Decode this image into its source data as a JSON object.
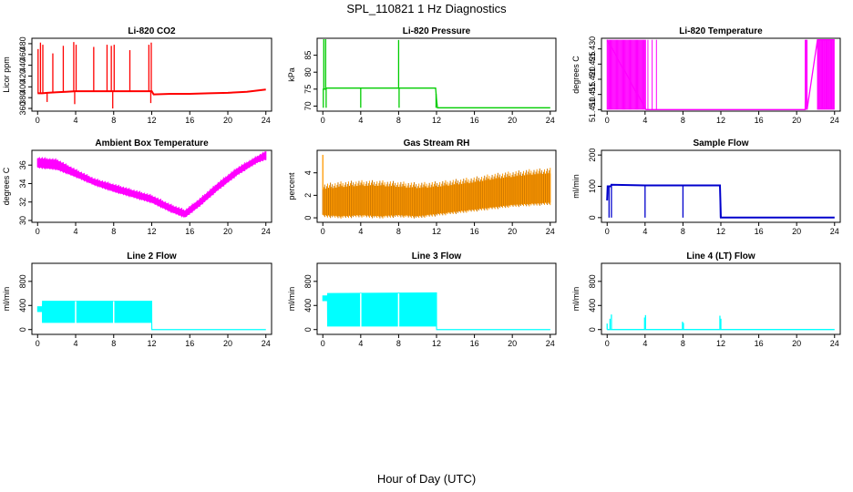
{
  "figure": {
    "title": "SPL_110821  1 Hz Diagnostics",
    "xlabel": "Hour of Day (UTC)"
  },
  "chart_data": [
    {
      "type": "line",
      "title": "Li-820 CO2",
      "ylabel": "Licor ppm",
      "color": "#ff0000",
      "xticks": [
        0,
        4,
        8,
        12,
        16,
        20,
        24
      ],
      "yticks": [
        "360",
        "380",
        "400",
        "420",
        "440",
        "460",
        "480"
      ],
      "ylim": [
        355,
        490
      ],
      "xlim": [
        -0.6,
        24.6
      ],
      "series": [
        {
          "name": "CO2",
          "x": [
            0,
            0.5,
            1,
            2,
            3,
            4,
            5,
            6,
            7,
            8,
            9,
            10,
            11,
            12,
            12.2,
            14,
            16,
            18,
            20,
            22,
            24
          ],
          "values": [
            388,
            388,
            389,
            390,
            391,
            392,
            392,
            392,
            392,
            392,
            392,
            392,
            392,
            392,
            386,
            387,
            387,
            388,
            389,
            391,
            395
          ]
        }
      ],
      "spikes": [
        {
          "x": 0.05,
          "y": 470
        },
        {
          "x": 0.3,
          "y": 482
        },
        {
          "x": 0.55,
          "y": 478
        },
        {
          "x": 1.6,
          "y": 462
        },
        {
          "x": 2.7,
          "y": 476
        },
        {
          "x": 3.8,
          "y": 483
        },
        {
          "x": 4.05,
          "y": 478
        },
        {
          "x": 5.9,
          "y": 474
        },
        {
          "x": 7.3,
          "y": 478
        },
        {
          "x": 7.75,
          "y": 476
        },
        {
          "x": 8.05,
          "y": 478
        },
        {
          "x": 9.7,
          "y": 468
        },
        {
          "x": 11.7,
          "y": 478
        },
        {
          "x": 11.95,
          "y": 482
        }
      ],
      "dips": [
        {
          "x": 1.0,
          "y": 372
        },
        {
          "x": 3.9,
          "y": 368
        },
        {
          "x": 7.9,
          "y": 360
        },
        {
          "x": 11.9,
          "y": 370
        }
      ]
    },
    {
      "type": "line",
      "title": "Li-820 Pressure",
      "ylabel": "kPa",
      "color": "#00cc00",
      "xticks": [
        0,
        4,
        8,
        12,
        16,
        20,
        24
      ],
      "yticks": [
        "70",
        "75",
        "80",
        "85"
      ],
      "ylim": [
        68.5,
        90
      ],
      "xlim": [
        -0.6,
        24.6
      ],
      "series": [
        {
          "name": "Pressure",
          "x": [
            0,
            0.3,
            0.31,
            4,
            8,
            11.9,
            12,
            12.1,
            24
          ],
          "values": [
            75,
            75,
            75.3,
            75.3,
            75.3,
            75.3,
            72,
            69.5,
            69.5
          ]
        }
      ],
      "spikes": [
        {
          "x": 0.1,
          "y": 90
        },
        {
          "x": 0.3,
          "y": 90
        },
        {
          "x": 8.0,
          "y": 89.5
        }
      ],
      "dips": [
        {
          "x": 0.05,
          "y": 69.5
        },
        {
          "x": 0.35,
          "y": 69.5
        },
        {
          "x": 4.0,
          "y": 69.5
        },
        {
          "x": 8.05,
          "y": 69.5
        },
        {
          "x": 11.95,
          "y": 69.5
        }
      ]
    },
    {
      "type": "line",
      "title": "Li-820 Temperature",
      "ylabel": "degrees C",
      "color": "#ff00ff",
      "xticks": [
        0,
        4,
        8,
        12,
        16,
        20,
        24
      ],
      "yticks": [
        "51.410",
        "51.415",
        "51.420",
        "51.425",
        "51.430"
      ],
      "ylim": [
        51.4095,
        51.4335
      ],
      "xlim": [
        -0.6,
        24.6
      ],
      "series": [
        {
          "name": "Temperature",
          "x": [
            0,
            4.1,
            5.2,
            20.9,
            21.0,
            21.1,
            22.2,
            24
          ],
          "values": [
            51.433,
            51.41,
            51.41,
            51.41,
            51.433,
            51.41,
            51.433,
            51.433
          ]
        }
      ]
    },
    {
      "type": "area",
      "title": "Ambient Box Temperature",
      "ylabel": "degrees C",
      "color": "#ff00ff",
      "xticks": [
        0,
        4,
        8,
        12,
        16,
        20,
        24
      ],
      "yticks": [
        "30",
        "32",
        "34",
        "36"
      ],
      "ylim": [
        29.8,
        37.6
      ],
      "xlim": [
        -0.6,
        24.6
      ],
      "series": [
        {
          "name": "upper",
          "x": [
            0,
            2,
            4,
            6,
            8,
            10,
            12,
            14,
            15.5,
            17,
            19,
            21,
            23,
            24
          ],
          "values": [
            36.7,
            36.5,
            35.4,
            34.4,
            33.8,
            33.2,
            32.6,
            31.6,
            31.0,
            32.2,
            34.0,
            35.6,
            36.8,
            37.4
          ]
        },
        {
          "name": "lower",
          "x": [
            0,
            2,
            4,
            6,
            8,
            10,
            12,
            14,
            15.5,
            17,
            19,
            21,
            23,
            24
          ],
          "values": [
            35.8,
            35.6,
            34.8,
            33.9,
            33.2,
            32.6,
            32.0,
            31.0,
            30.4,
            31.6,
            33.4,
            35.0,
            36.3,
            36.7
          ]
        }
      ]
    },
    {
      "type": "area",
      "title": "Gas Stream RH",
      "ylabel": "percent",
      "color": "#ff9900",
      "xticks": [
        0,
        4,
        8,
        12,
        16,
        20,
        24
      ],
      "yticks": [
        "0",
        "2",
        "4"
      ],
      "ylim": [
        -0.4,
        6.0
      ],
      "xlim": [
        -0.6,
        24.6
      ],
      "series": [
        {
          "name": "upper",
          "x": [
            0,
            2,
            4,
            6,
            8,
            10,
            12,
            14,
            16,
            18,
            20,
            22,
            24
          ],
          "values": [
            2.5,
            2.7,
            2.8,
            2.8,
            2.7,
            2.6,
            2.7,
            2.9,
            3.1,
            3.4,
            3.6,
            3.8,
            3.9
          ]
        },
        {
          "name": "lower",
          "x": [
            0,
            2,
            4,
            6,
            8,
            10,
            12,
            14,
            16,
            18,
            20,
            22,
            24
          ],
          "values": [
            0.3,
            0.2,
            0.3,
            0.2,
            0.3,
            0.2,
            0.4,
            0.6,
            0.8,
            1.0,
            1.2,
            1.3,
            1.4
          ]
        }
      ],
      "spikes": [
        {
          "x": 0.0,
          "y": 5.6
        }
      ]
    },
    {
      "type": "line",
      "title": "Sample Flow",
      "ylabel": "ml/min",
      "color": "#0000cc",
      "xticks": [
        0,
        4,
        8,
        12,
        16,
        20,
        24
      ],
      "yticks": [
        "0",
        "100",
        "200"
      ],
      "ylim": [
        -15,
        215
      ],
      "xlim": [
        -0.6,
        24.6
      ],
      "series": [
        {
          "name": "Sample Flow",
          "x": [
            0,
            0.05,
            0.4,
            0.45,
            4,
            8,
            11.9,
            12.0,
            24
          ],
          "values": [
            55,
            100,
            100,
            105,
            103,
            103,
            103,
            0,
            0
          ]
        }
      ],
      "dips": [
        {
          "x": 0.2,
          "y": 0
        },
        {
          "x": 0.45,
          "y": 0
        },
        {
          "x": 4.0,
          "y": 0
        },
        {
          "x": 8.0,
          "y": 0
        },
        {
          "x": 11.95,
          "y": 0
        }
      ]
    },
    {
      "type": "area",
      "title": "Line 2 Flow",
      "ylabel": "ml/min",
      "color": "#00ffff",
      "xticks": [
        0,
        4,
        8,
        12,
        16,
        20,
        24
      ],
      "yticks": [
        "0",
        "400",
        "800"
      ],
      "ylim": [
        -80,
        1100
      ],
      "xlim": [
        -0.6,
        24.6
      ],
      "series": [
        {
          "name": "upper",
          "x": [
            0,
            0.5,
            0.51,
            12,
            12.01,
            24
          ],
          "values": [
            380,
            380,
            470,
            470,
            0,
            0
          ]
        },
        {
          "name": "lower",
          "x": [
            0,
            0.5,
            0.51,
            12,
            12.01,
            24
          ],
          "values": [
            300,
            300,
            120,
            120,
            0,
            0
          ]
        }
      ],
      "dips": [
        {
          "x": 4.0,
          "y": 0
        },
        {
          "x": 8.0,
          "y": 0
        }
      ]
    },
    {
      "type": "area",
      "title": "Line 3 Flow",
      "ylabel": "ml/min",
      "color": "#00ffff",
      "xticks": [
        0,
        4,
        8,
        12,
        16,
        20,
        24
      ],
      "yticks": [
        "0",
        "400",
        "800"
      ],
      "ylim": [
        -80,
        1100
      ],
      "xlim": [
        -0.6,
        24.6
      ],
      "series": [
        {
          "name": "upper",
          "x": [
            0,
            0.5,
            0.51,
            12,
            12.01,
            24
          ],
          "values": [
            560,
            560,
            600,
            610,
            0,
            0
          ]
        },
        {
          "name": "lower",
          "x": [
            0,
            0.5,
            0.51,
            12,
            12.01,
            24
          ],
          "values": [
            480,
            480,
            60,
            60,
            0,
            0
          ]
        }
      ],
      "dips": [
        {
          "x": 4.0,
          "y": 0
        },
        {
          "x": 8.0,
          "y": 0
        }
      ]
    },
    {
      "type": "line",
      "title": "Line 4 (LT) Flow",
      "ylabel": "ml/min",
      "color": "#00ffff",
      "xticks": [
        0,
        4,
        8,
        12,
        16,
        20,
        24
      ],
      "yticks": [
        "0",
        "400",
        "800"
      ],
      "ylim": [
        -80,
        1100
      ],
      "xlim": [
        -0.6,
        24.6
      ],
      "series": [
        {
          "name": "Line 4",
          "x": [
            0,
            24
          ],
          "values": [
            0,
            0
          ]
        }
      ],
      "spikes": [
        {
          "x": 0.0,
          "y": 100
        },
        {
          "x": 0.3,
          "y": 180
        },
        {
          "x": 0.45,
          "y": 250
        },
        {
          "x": 3.95,
          "y": 200
        },
        {
          "x": 4.05,
          "y": 240
        },
        {
          "x": 7.95,
          "y": 130
        },
        {
          "x": 8.05,
          "y": 110
        },
        {
          "x": 11.9,
          "y": 230
        },
        {
          "x": 12.0,
          "y": 180
        }
      ]
    }
  ]
}
